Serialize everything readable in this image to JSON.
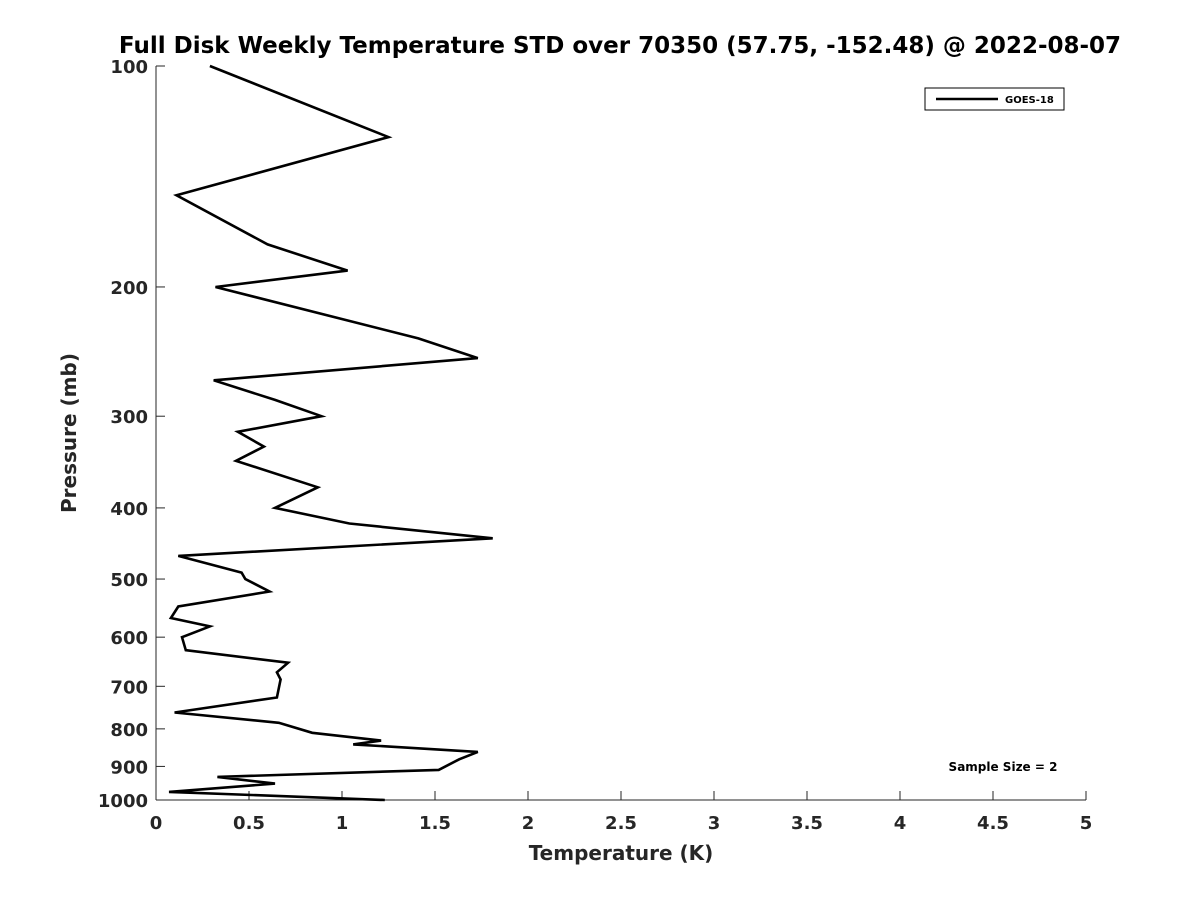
{
  "chart_data": {
    "type": "line",
    "title": "Full Disk Weekly Temperature STD over 70350 (57.75, -152.48) @ 2022-08-07",
    "xlabel": "Temperature (K)",
    "ylabel": "Pressure (mb)",
    "xlim": [
      0,
      5
    ],
    "ylim": [
      100,
      1000
    ],
    "y_scale": "log",
    "y_reversed": true,
    "x_ticks": [
      0,
      0.5,
      1,
      1.5,
      2,
      2.5,
      3,
      3.5,
      4,
      4.5,
      5
    ],
    "x_tick_labels": [
      "0",
      "0.5",
      "1",
      "1.5",
      "2",
      "2.5",
      "3",
      "3.5",
      "4",
      "4.5",
      "5"
    ],
    "y_ticks": [
      100,
      200,
      300,
      400,
      500,
      600,
      700,
      800,
      900,
      1000
    ],
    "y_tick_labels": [
      "100",
      "200",
      "300",
      "400",
      "500",
      "600",
      "700",
      "800",
      "900",
      "1000"
    ],
    "grid": false,
    "legend_position": "top-right",
    "annotation": "Sample Size = 2",
    "series": [
      {
        "name": "GOES-18",
        "color": "#000000",
        "points": [
          [
            0.29,
            100
          ],
          [
            1.25,
            125
          ],
          [
            0.11,
            150
          ],
          [
            0.6,
            175
          ],
          [
            1.03,
            190
          ],
          [
            0.32,
            200
          ],
          [
            1.41,
            235
          ],
          [
            1.73,
            250
          ],
          [
            0.31,
            268
          ],
          [
            0.64,
            285
          ],
          [
            0.89,
            300
          ],
          [
            0.44,
            315
          ],
          [
            0.58,
            330
          ],
          [
            0.43,
            345
          ],
          [
            0.87,
            375
          ],
          [
            0.64,
            400
          ],
          [
            1.04,
            420
          ],
          [
            1.81,
            440
          ],
          [
            0.12,
            465
          ],
          [
            0.46,
            490
          ],
          [
            0.48,
            500
          ],
          [
            0.61,
            520
          ],
          [
            0.12,
            545
          ],
          [
            0.08,
            565
          ],
          [
            0.29,
            580
          ],
          [
            0.14,
            600
          ],
          [
            0.16,
            625
          ],
          [
            0.71,
            650
          ],
          [
            0.65,
            670
          ],
          [
            0.67,
            685
          ],
          [
            0.65,
            725
          ],
          [
            0.1,
            760
          ],
          [
            0.66,
            785
          ],
          [
            0.84,
            810
          ],
          [
            1.21,
            830
          ],
          [
            1.06,
            840
          ],
          [
            1.73,
            860
          ],
          [
            1.63,
            880
          ],
          [
            1.52,
            910
          ],
          [
            0.33,
            930
          ],
          [
            0.64,
            950
          ],
          [
            0.07,
            975
          ],
          [
            1.23,
            1000
          ]
        ]
      }
    ]
  }
}
